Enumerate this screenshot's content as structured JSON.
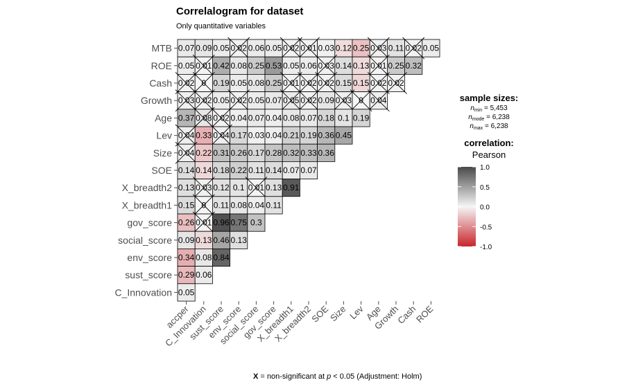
{
  "chart_data": {
    "type": "heatmap",
    "title": "Correlalogram for dataset",
    "subtitle": "Only quantitative variables",
    "row_labels": [
      "MTB",
      "ROE",
      "Cash",
      "Growth",
      "Age",
      "Lev",
      "Size",
      "SOE",
      "X_breadth2",
      "X_breadth1",
      "gov_score",
      "social_score",
      "env_score",
      "sust_score",
      "C_Innovation"
    ],
    "col_labels": [
      "accper",
      "C_Innovation",
      "sust_score",
      "env_score",
      "social_score",
      "gov_score",
      "X_breadth1",
      "X_breadth2",
      "SOE",
      "Size",
      "Lev",
      "Age",
      "Growth",
      "Cash",
      "ROE"
    ],
    "rows": [
      {
        "values": [
          0.07,
          0.09,
          0.05,
          0.02,
          0.06,
          0.05,
          0.02,
          0.01,
          0.03,
          -0.12,
          -0.25,
          0.03,
          0.11,
          0.02,
          0.05
        ],
        "labels": [
          "0.07",
          "0.09",
          "0.05",
          "0.02",
          "0.06",
          "0.05",
          "0.02",
          "0.01",
          "0.03",
          "0.12",
          "0.25",
          "0.03",
          "0.11",
          "0.02",
          "0.05"
        ],
        "ns": [
          0,
          0,
          0,
          1,
          0,
          0,
          1,
          1,
          0,
          0,
          0,
          1,
          0,
          1,
          0
        ]
      },
      {
        "values": [
          0.05,
          0.01,
          0.42,
          0.08,
          0.25,
          0.53,
          0.05,
          0.06,
          0.03,
          0.14,
          -0.13,
          0.01,
          0.25,
          0.32
        ],
        "labels": [
          "0.05",
          "0.01",
          "0.42",
          "0.08",
          "0.25",
          "0.53",
          "0.05",
          "0.06",
          "0.03",
          "0.14",
          "0.13",
          "0.01",
          "0.25",
          "0.32"
        ],
        "ns": [
          0,
          1,
          0,
          0,
          0,
          0,
          0,
          0,
          1,
          0,
          0,
          1,
          0,
          0
        ]
      },
      {
        "values": [
          0.02,
          0,
          0.19,
          0.05,
          0.08,
          0.25,
          0.01,
          0.02,
          0.02,
          0.15,
          -0.15,
          0.02,
          0.02
        ],
        "labels": [
          "0.02",
          "0",
          "0.19",
          "0.05",
          "0.08",
          "0.25",
          "0.01",
          "0.02",
          "0.02",
          "0.15",
          "0.15",
          "0.02",
          "0.02"
        ],
        "ns": [
          1,
          1,
          0,
          0,
          0,
          0,
          1,
          1,
          1,
          0,
          0,
          1,
          1
        ]
      },
      {
        "values": [
          0.03,
          0.02,
          0.05,
          0.02,
          0.05,
          0.07,
          0.05,
          0.02,
          0.09,
          0.03,
          0,
          0.04
        ],
        "labels": [
          "0.03",
          "0.02",
          "0.05",
          "0.02",
          "0.05",
          "0.07",
          "0.05",
          "0.02",
          "0.09",
          "0.03",
          "0",
          "0.04"
        ],
        "ns": [
          1,
          1,
          0,
          1,
          0,
          0,
          1,
          1,
          0,
          1,
          1,
          1
        ]
      },
      {
        "values": [
          0.37,
          0.08,
          0.02,
          0.04,
          0.07,
          0.04,
          0.08,
          0.07,
          0.18,
          0.1,
          0.19
        ],
        "labels": [
          "0.37",
          "0.08",
          "0.02",
          "0.04",
          "0.07",
          "0.04",
          "0.08",
          "0.07",
          "0.18",
          "0.1",
          "0.19"
        ],
        "ns": [
          0,
          1,
          1,
          0,
          0,
          0,
          0,
          0,
          0,
          0,
          0
        ]
      },
      {
        "values": [
          0.04,
          -0.33,
          0.04,
          0.17,
          0.03,
          0.04,
          0.21,
          0.19,
          0.36,
          0.45
        ],
        "labels": [
          "0.04",
          "0.33",
          "0.04",
          "0.17",
          "0.03",
          "0.04",
          "0.21",
          "0.19",
          "0.36",
          "0.45"
        ],
        "ns": [
          1,
          0,
          1,
          0,
          0,
          0,
          0,
          0,
          0,
          0
        ]
      },
      {
        "values": [
          0.04,
          -0.22,
          0.31,
          0.26,
          0.17,
          0.28,
          0.32,
          0.33,
          0.36
        ],
        "labels": [
          "0.04",
          "0.22",
          "0.31",
          "0.26",
          "0.17",
          "0.28",
          "0.32",
          "0.33",
          "0.36"
        ],
        "ns": [
          1,
          0,
          0,
          0,
          0,
          0,
          0,
          0,
          0
        ]
      },
      {
        "values": [
          0.14,
          -0.14,
          0.18,
          0.22,
          0.11,
          0.14,
          0.07,
          0.07
        ],
        "labels": [
          "0.14",
          "0.14",
          "0.18",
          "0.22",
          "0.11",
          "0.14",
          "0.07",
          "0.07"
        ],
        "ns": [
          0,
          0,
          0,
          0,
          0,
          0,
          0,
          0
        ]
      },
      {
        "values": [
          0.13,
          0.03,
          0.12,
          0.1,
          0.01,
          0.13,
          0.91
        ],
        "labels": [
          "0.13",
          "0.03",
          "0.12",
          "0.1",
          "0.01",
          "0.13",
          "0.91"
        ],
        "ns": [
          0,
          1,
          0,
          0,
          1,
          0,
          0
        ]
      },
      {
        "values": [
          0.15,
          0,
          0.11,
          0.08,
          0.04,
          0.11
        ],
        "labels": [
          "0.15",
          "0",
          "0.11",
          "0.08",
          "0.04",
          "0.11"
        ],
        "ns": [
          0,
          1,
          0,
          0,
          0,
          0
        ]
      },
      {
        "values": [
          -0.26,
          0.01,
          0.96,
          0.75,
          0.3
        ],
        "labels": [
          "0.26",
          "0.01",
          "0.96",
          "0.75",
          "0.3"
        ],
        "ns": [
          0,
          1,
          0,
          0,
          0
        ]
      },
      {
        "values": [
          0.09,
          -0.13,
          0.46,
          0.13
        ],
        "labels": [
          "0.09",
          "0.13",
          "0.46",
          "0.13"
        ],
        "ns": [
          0,
          0,
          0,
          0
        ]
      },
      {
        "values": [
          -0.34,
          0.08,
          0.84
        ],
        "labels": [
          "0.34",
          "0.08",
          "0.84"
        ],
        "ns": [
          0,
          0,
          0
        ]
      },
      {
        "values": [
          -0.29,
          0.06
        ],
        "labels": [
          "0.29",
          "0.06"
        ],
        "ns": [
          0,
          0
        ]
      },
      {
        "values": [
          0.05
        ],
        "labels": [
          "0.05"
        ],
        "ns": [
          0
        ]
      }
    ],
    "color_scale": {
      "low": "#c7252b",
      "mid": "#f5f5f5",
      "high": "#4a4a4a",
      "range": [
        -1,
        1
      ]
    },
    "legend": {
      "position": "right",
      "sample_sizes_title": "sample sizes:",
      "sample_sizes": [
        {
          "sub": "min",
          "text": " = 5,453"
        },
        {
          "sub": "mode",
          "text": " = 6,238"
        },
        {
          "sub": "max",
          "text": " = 6,238"
        }
      ],
      "correlation_title": "correlation:",
      "correlation_subtitle": "Pearson",
      "ticks": [
        "1.0",
        "0.5",
        "0.0",
        "-0.5",
        "-1.0"
      ],
      "tick_values": [
        1.0,
        0.5,
        0.0,
        -0.5,
        -1.0
      ]
    },
    "caption": {
      "bold": "X",
      "text": " = non-significant at ",
      "p": "p",
      "rest": " < 0.05 (Adjustment: Holm)"
    }
  }
}
